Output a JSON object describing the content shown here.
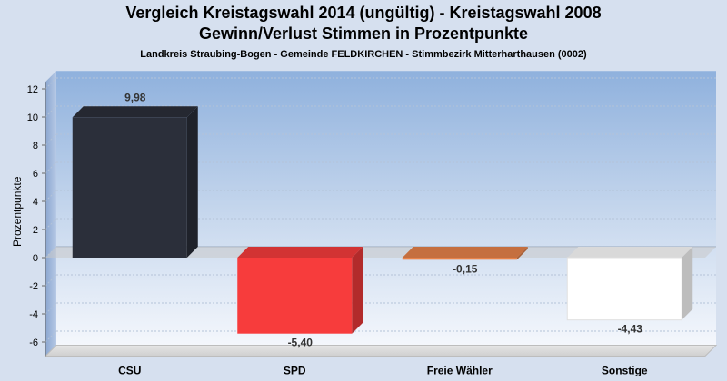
{
  "chart_data": {
    "type": "bar",
    "title": "Vergleich Kreistagswahl 2014 (ungültig) - Kreistagswahl 2008",
    "subtitle": "Gewinn/Verlust Stimmen in Prozentpunkte",
    "subtitle2": "Landkreis Straubing-Bogen - Gemeinde FELDKIRCHEN - Stimmbezirk Mitterharthausen (0002)",
    "ylabel": "Prozentpunkte",
    "xlabel": "",
    "ylim": [
      -7,
      12.5
    ],
    "yticks": [
      12,
      10,
      8,
      6,
      4,
      2,
      0,
      -2,
      -4,
      -6
    ],
    "grid": true,
    "categories": [
      "CSU",
      "SPD",
      "Freie Wähler",
      "Sonstige"
    ],
    "values": [
      9.98,
      -5.4,
      -0.15,
      -4.43
    ],
    "value_labels": [
      "9,98",
      "-5,40",
      "-0,15",
      "-4,43"
    ],
    "colors": [
      "#2b2f3a",
      "#f73c3c",
      "#e8834a",
      "#ffffff"
    ]
  }
}
